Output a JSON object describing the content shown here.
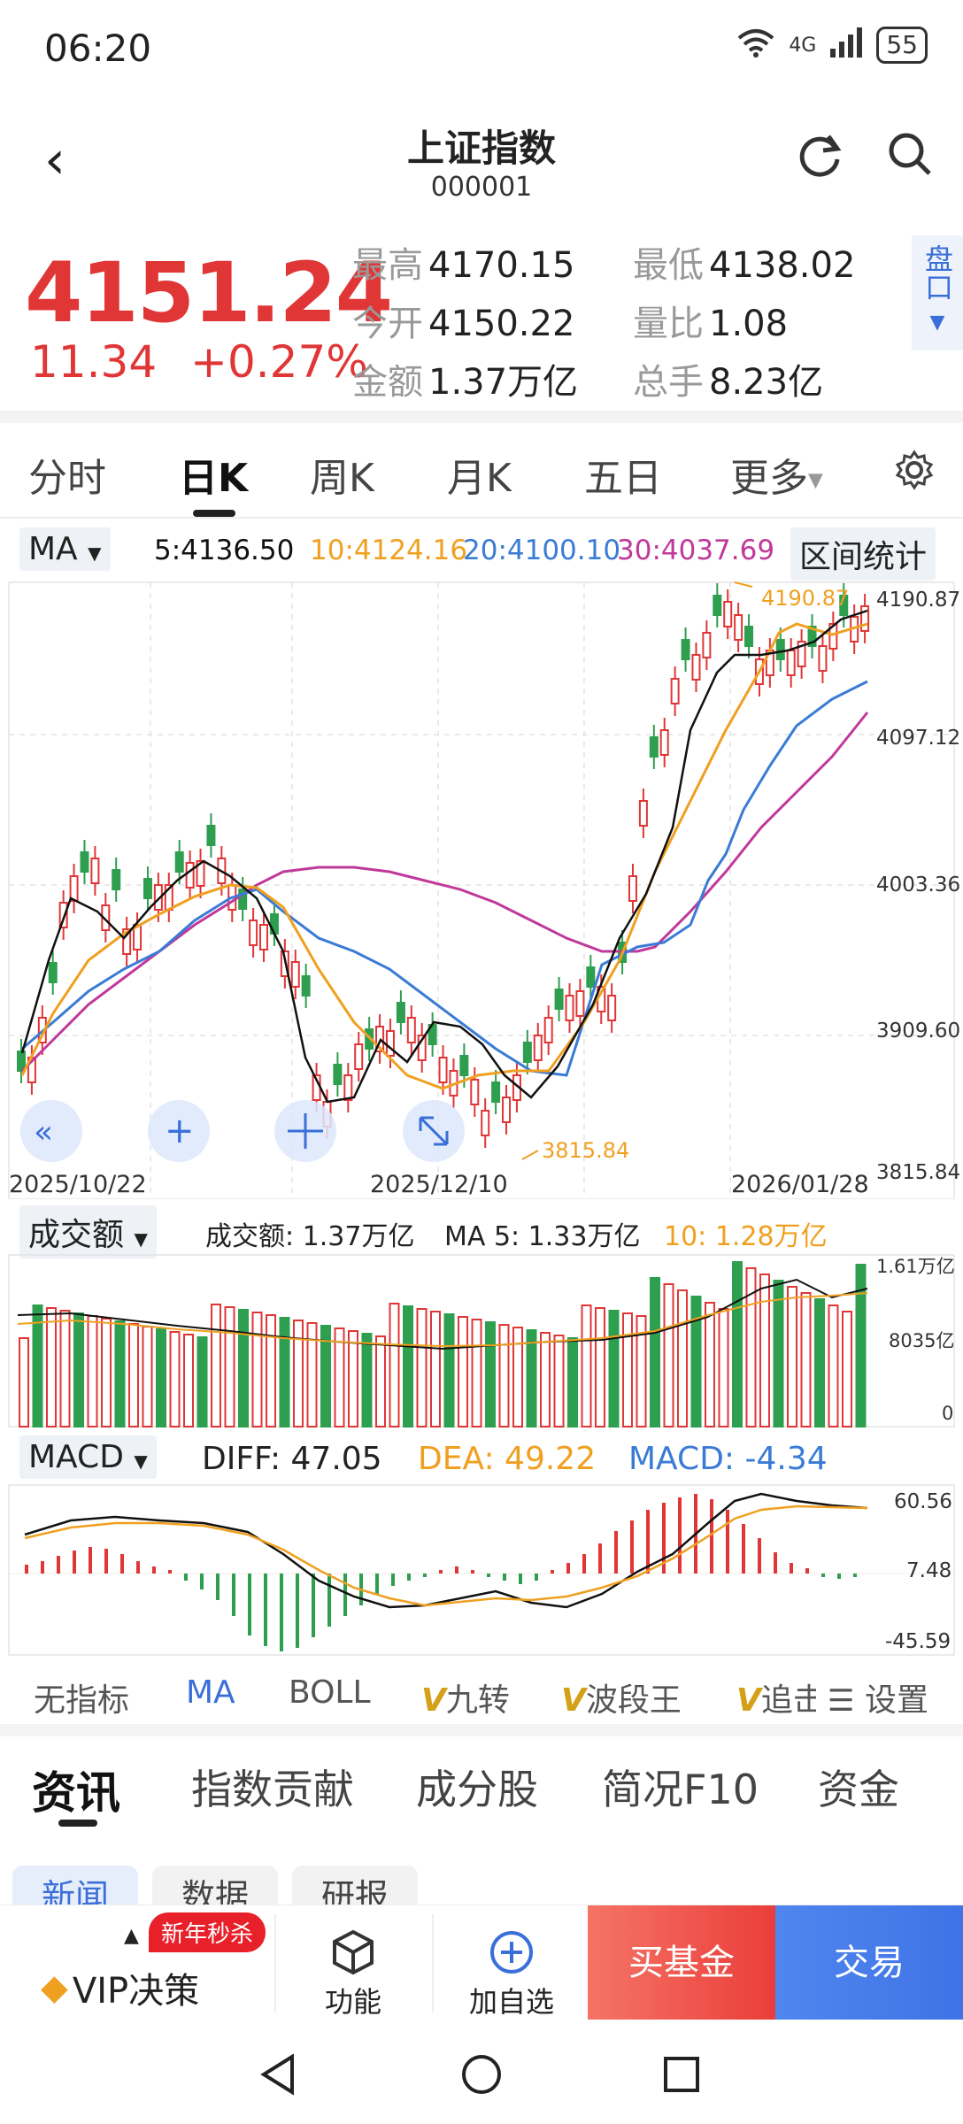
{
  "status": {
    "time": "06:20",
    "network": "4G",
    "battery": "55"
  },
  "header": {
    "title": "上证指数",
    "code": "000001"
  },
  "quote": {
    "price": "4151.24",
    "change": "11.34",
    "change_pct": "+0.27%",
    "stats": [
      {
        "k": "最高",
        "v": "4170.15"
      },
      {
        "k": "最低",
        "v": "4138.02"
      },
      {
        "k": "今开",
        "v": "4150.22"
      },
      {
        "k": "量比",
        "v": "1.08"
      },
      {
        "k": "金额",
        "v": "1.37万亿"
      },
      {
        "k": "总手",
        "v": "8.23亿"
      }
    ],
    "pankou": "盘口"
  },
  "tabs": [
    "分时",
    "日K",
    "周K",
    "月K",
    "五日",
    "更多"
  ],
  "ma_bar": {
    "selector": "MA",
    "ma5": "5:4136.50",
    "ma10": "10:4124.16",
    "ma20": "20:4100.10",
    "ma30": "30:4037.69",
    "range_stats": "区间统计"
  },
  "chart": {
    "y_ticks": [
      "4190.87",
      "4097.12",
      "4003.36",
      "3909.60",
      "3815.84"
    ],
    "x_ticks": [
      "2025/10/22",
      "2025/12/10",
      "2026/01/28"
    ],
    "high_label": "4190.87",
    "low_label": "3815.84"
  },
  "volume": {
    "selector": "成交额",
    "amount": "成交额: 1.37万亿",
    "ma5": "MA 5: 1.33万亿",
    "ma10": "10: 1.28万亿",
    "ticks": [
      "1.61万亿",
      "8035亿",
      "0"
    ]
  },
  "macd": {
    "selector": "MACD",
    "diff": "DIFF: 47.05",
    "dea": "DEA: 49.22",
    "macd": "MACD: -4.34",
    "ticks": [
      "60.56",
      "7.48",
      "-45.59"
    ]
  },
  "indicators": [
    "无指标",
    "MA",
    "BOLL",
    "九转",
    "波段王",
    "追击"
  ],
  "settings": "设置",
  "bottom_tabs": [
    "资讯",
    "指数贡献",
    "成分股",
    "简况F10",
    "资金"
  ],
  "sub_tabs": [
    "新闻",
    "数据",
    "研报"
  ],
  "actions": {
    "vip": "VIP决策",
    "badge": "新年秒杀",
    "func": "功能",
    "add": "加自选",
    "fund": "买基金",
    "trade": "交易"
  },
  "colors": {
    "up": "#e03636",
    "down": "#2e9e4f",
    "ma5": "#111111",
    "ma10": "#f0a020",
    "ma20": "#3a7bd5",
    "ma30": "#c0399a",
    "accent": "#3a6fd8"
  }
}
